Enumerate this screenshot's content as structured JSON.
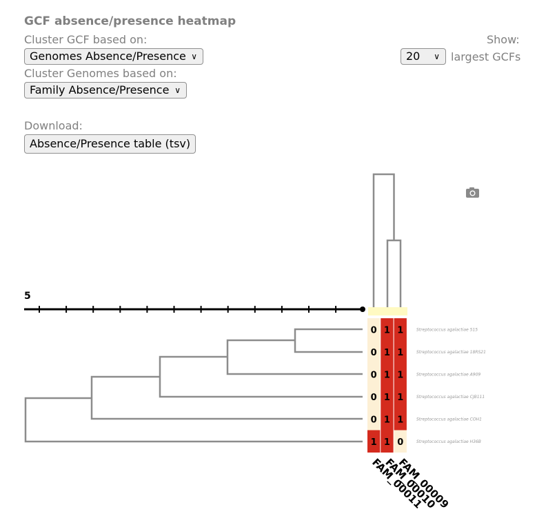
{
  "title": "GCF absence/presence heatmap",
  "controls": {
    "cluster_gcf_label": "Cluster GCF based on:",
    "cluster_gcf_value": "Genomes Absence/Presence",
    "cluster_genomes_label": "Cluster Genomes based on:",
    "cluster_genomes_value": "Family Absence/Presence",
    "download_label": "Download:",
    "download_button": "Absence/Presence table (tsv)",
    "show_label": "Show:",
    "show_value": "20",
    "show_suffix": "largest GCFs"
  },
  "heatmap": {
    "scale_label": "5",
    "columns": [
      "FAM_00011",
      "FAM_00010",
      "FAM_00009"
    ],
    "rows": [
      {
        "genome": "Streptococcus agalactiae 515",
        "values": [
          0,
          1,
          1
        ]
      },
      {
        "genome": "Streptococcus agalactiae 18RS21",
        "values": [
          0,
          1,
          1
        ]
      },
      {
        "genome": "Streptococcus agalactiae A909",
        "values": [
          0,
          1,
          1
        ]
      },
      {
        "genome": "Streptococcus agalactiae CJB111",
        "values": [
          0,
          1,
          1
        ]
      },
      {
        "genome": "Streptococcus agalactiae COH1",
        "values": [
          0,
          1,
          1
        ]
      },
      {
        "genome": "Streptococcus agalactiae H36B",
        "values": [
          1,
          1,
          0
        ]
      }
    ],
    "colors": {
      "present": "#d42b1e",
      "absent": "#fdf0d5",
      "header": "#fffac2",
      "tree": "#8c8c8c"
    }
  },
  "icons": {
    "camera": "camera-icon",
    "chevron": "chevron-down-icon"
  }
}
